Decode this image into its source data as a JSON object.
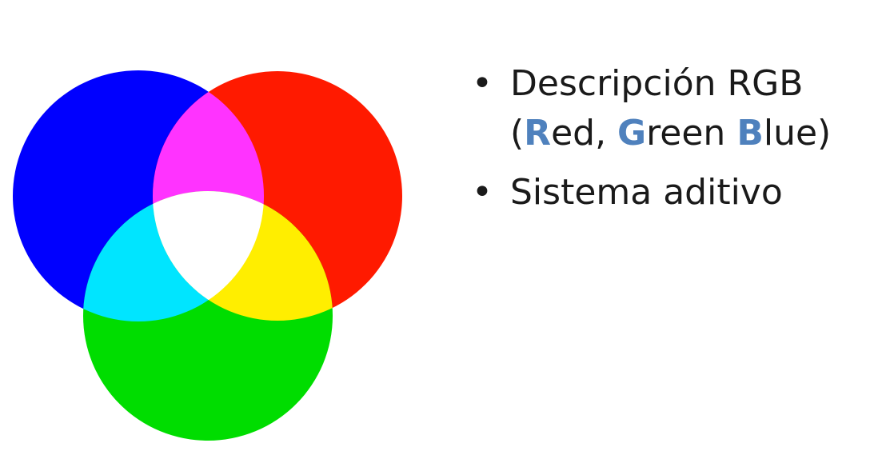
{
  "diagram": {
    "circles": [
      {
        "name": "blue",
        "color": "#0000ff"
      },
      {
        "name": "red",
        "color": "#ff1a00"
      },
      {
        "name": "green",
        "color": "#00dd00"
      }
    ],
    "overlaps": {
      "magenta": "#ff33ff",
      "cyan": "#00e5ff",
      "yellow": "#ffee00",
      "white": "#ffffff"
    }
  },
  "bullets": [
    {
      "line1": "Descripción RGB",
      "line2": {
        "open": "(",
        "r_letter": "R",
        "r_rest": "ed, ",
        "g_letter": "G",
        "g_rest": "reen ",
        "b_letter": "B",
        "b_rest": "lue)"
      }
    },
    {
      "text": "Sistema aditivo"
    }
  ],
  "colors": {
    "accent": "#4f81bd",
    "text": "#1a1a1a"
  }
}
